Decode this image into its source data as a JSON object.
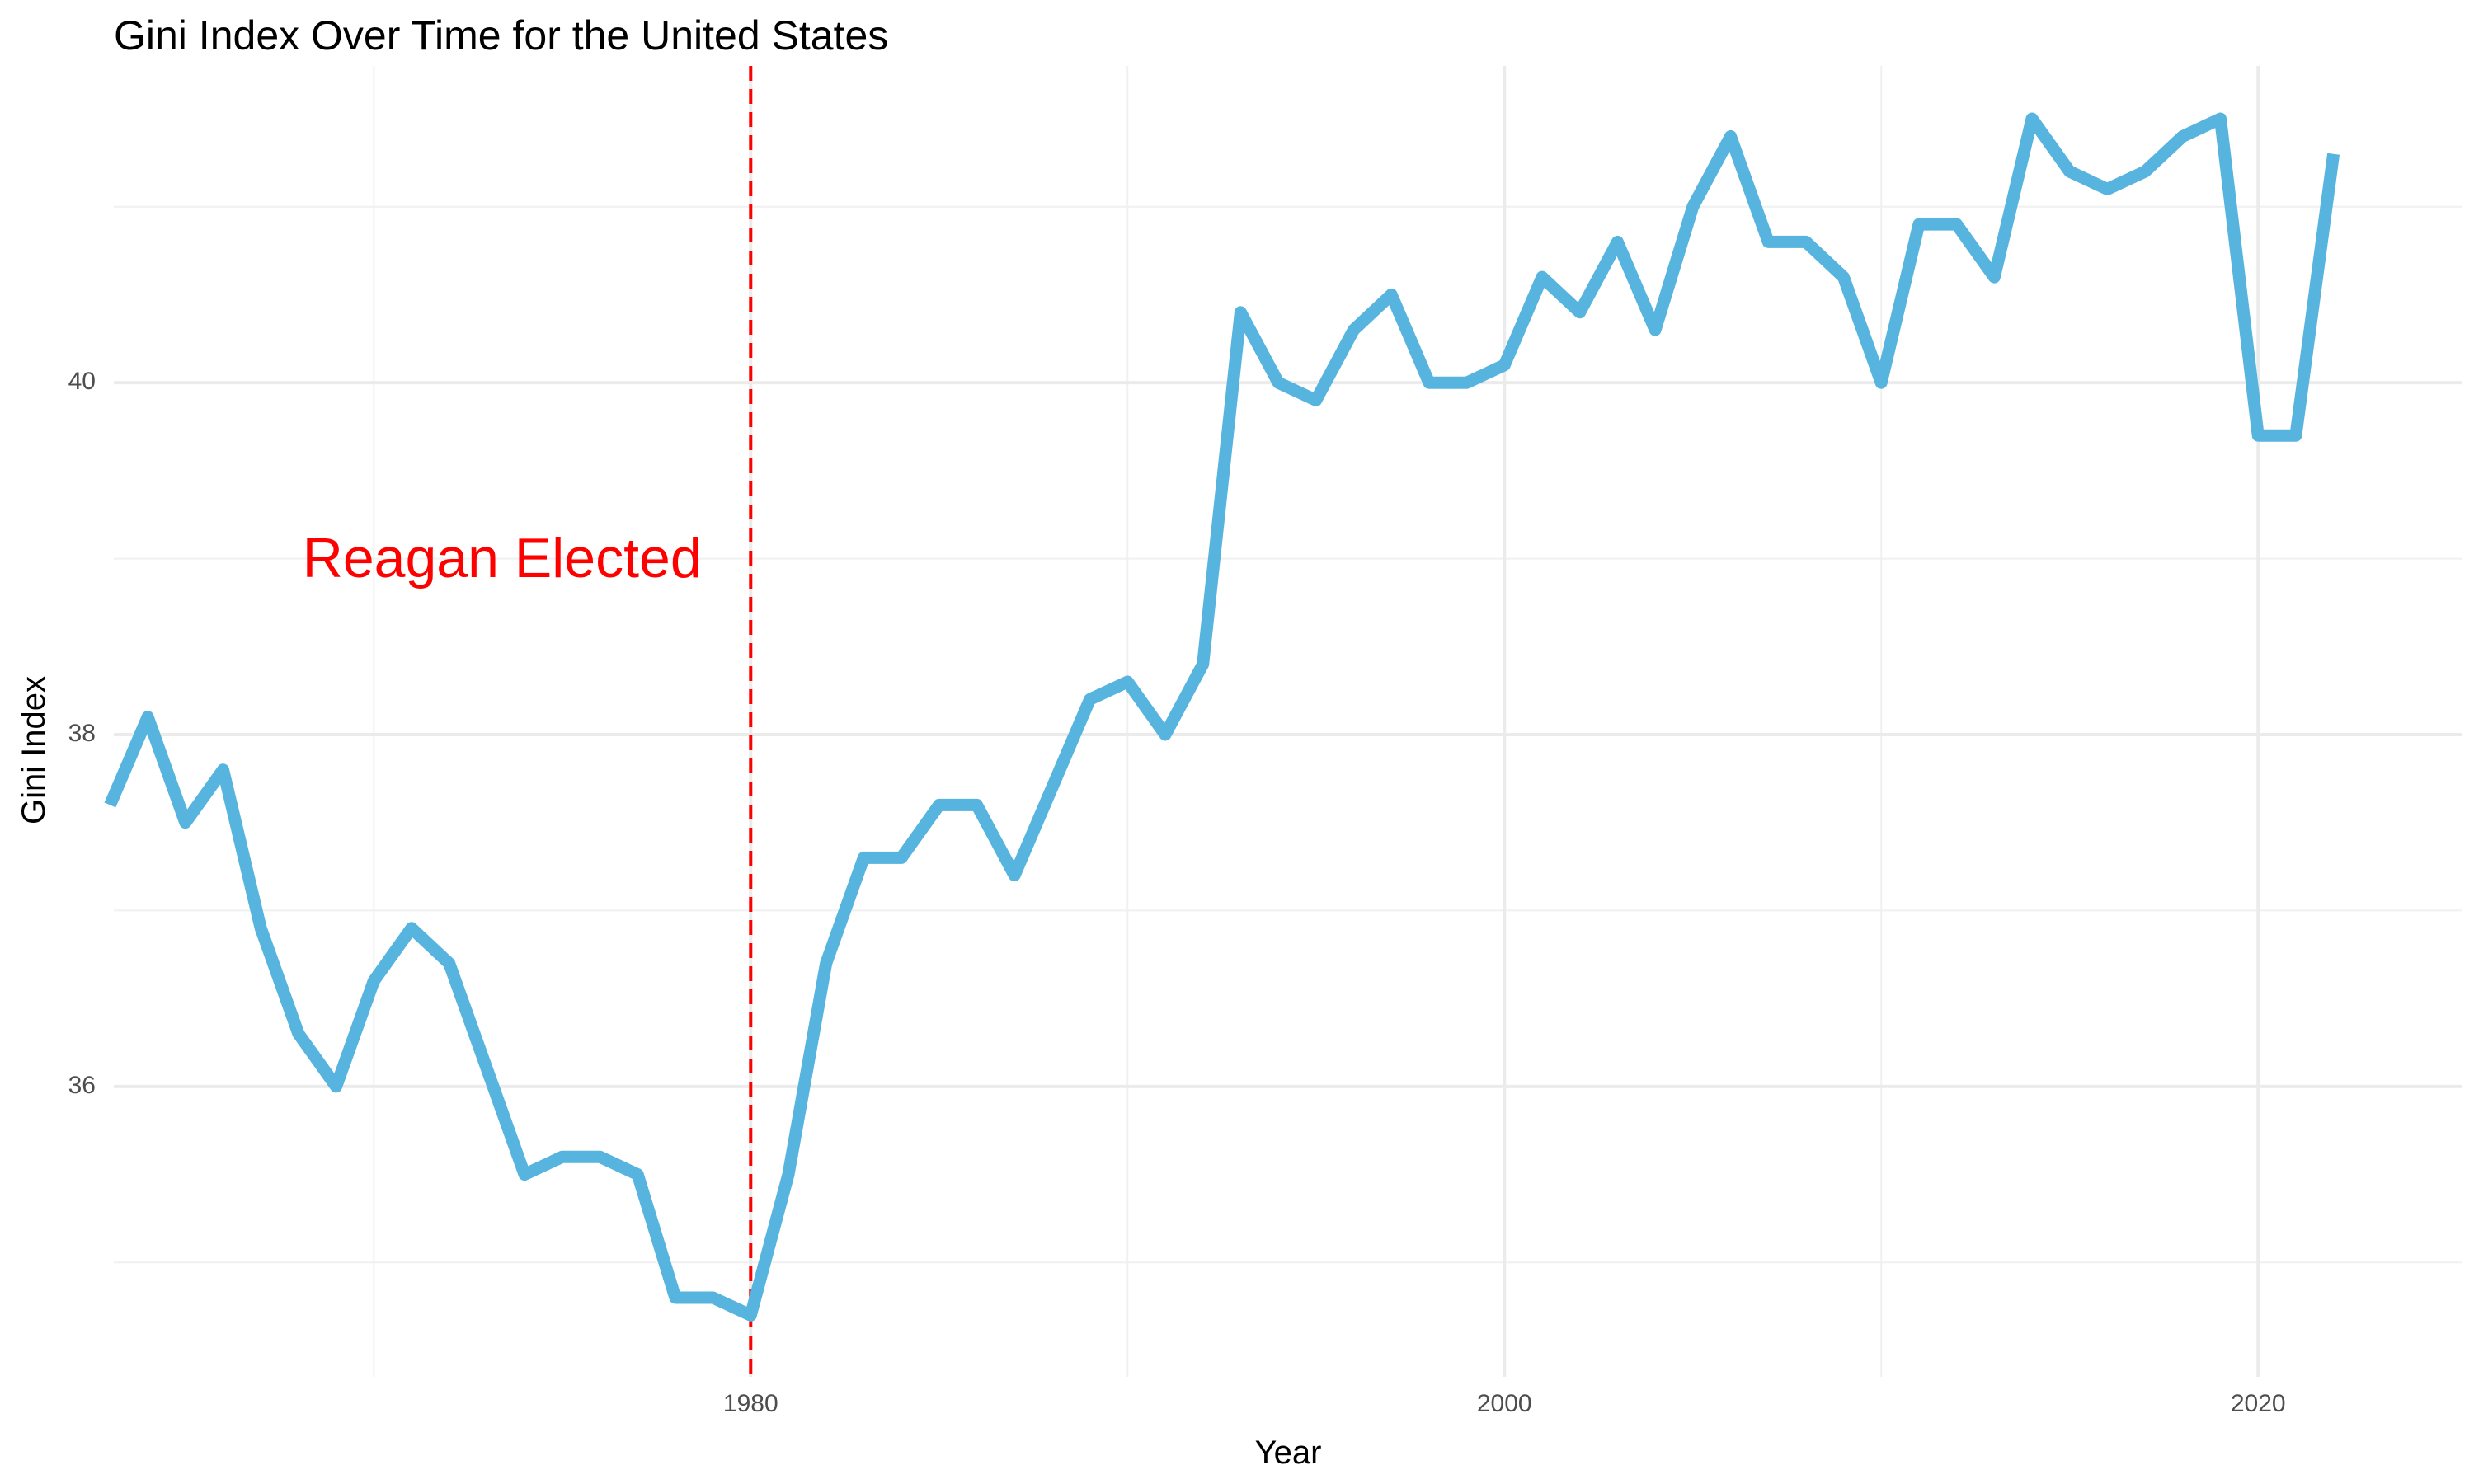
{
  "chart_data": {
    "type": "line",
    "title": "Gini Index Over Time for the United States",
    "xlabel": "Year",
    "ylabel": "Gini Index",
    "xlim": [
      1963.1,
      2025.4
    ],
    "ylim": [
      34.35,
      41.8
    ],
    "x_ticks": [
      1980,
      2000,
      2020
    ],
    "x_minor_ticks": [
      1970,
      1990,
      2010
    ],
    "y_ticks": [
      36,
      38,
      40
    ],
    "y_minor_ticks": [
      35,
      37,
      39,
      41
    ],
    "grid": true,
    "legend": "none",
    "line_color": "#56B4DE",
    "series": [
      {
        "x": [
          1963,
          1964,
          1965,
          1966,
          1967,
          1968,
          1969,
          1970,
          1971,
          1972,
          1973,
          1974,
          1975,
          1976,
          1977,
          1978,
          1979,
          1980,
          1981,
          1982,
          1983,
          1984,
          1985,
          1986,
          1987,
          1988,
          1989,
          1990,
          1991,
          1992,
          1993,
          1994,
          1995,
          1996,
          1997,
          1998,
          1999,
          2000,
          2001,
          2002,
          2003,
          2004,
          2005,
          2006,
          2007,
          2008,
          2009,
          2010,
          2011,
          2012,
          2013,
          2014,
          2015,
          2016,
          2017,
          2018,
          2019,
          2020,
          2021,
          2022
        ],
        "values": [
          37.6,
          38.1,
          37.5,
          37.8,
          36.9,
          36.3,
          36.0,
          36.6,
          36.9,
          36.7,
          36.1,
          35.5,
          35.6,
          35.6,
          35.5,
          34.8,
          34.8,
          34.7,
          35.5,
          36.7,
          37.3,
          37.3,
          37.6,
          37.6,
          37.2,
          37.7,
          38.2,
          38.3,
          38.0,
          38.4,
          40.4,
          40.0,
          39.9,
          40.3,
          40.5,
          40.0,
          40.0,
          40.1,
          40.6,
          40.4,
          40.8,
          40.3,
          41.0,
          41.4,
          40.8,
          40.8,
          40.6,
          40.0,
          40.9,
          40.9,
          40.6,
          41.5,
          41.2,
          41.1,
          41.2,
          41.4,
          41.5,
          39.7,
          39.7,
          41.3
        ]
      }
    ],
    "annotations": [
      {
        "type": "vline",
        "x": 1980,
        "color": "#FF0000",
        "style": "dashed"
      },
      {
        "type": "text",
        "text": "Reagan Elected",
        "x": 1973.4,
        "y": 38.98,
        "color": "#FF0000"
      }
    ]
  }
}
